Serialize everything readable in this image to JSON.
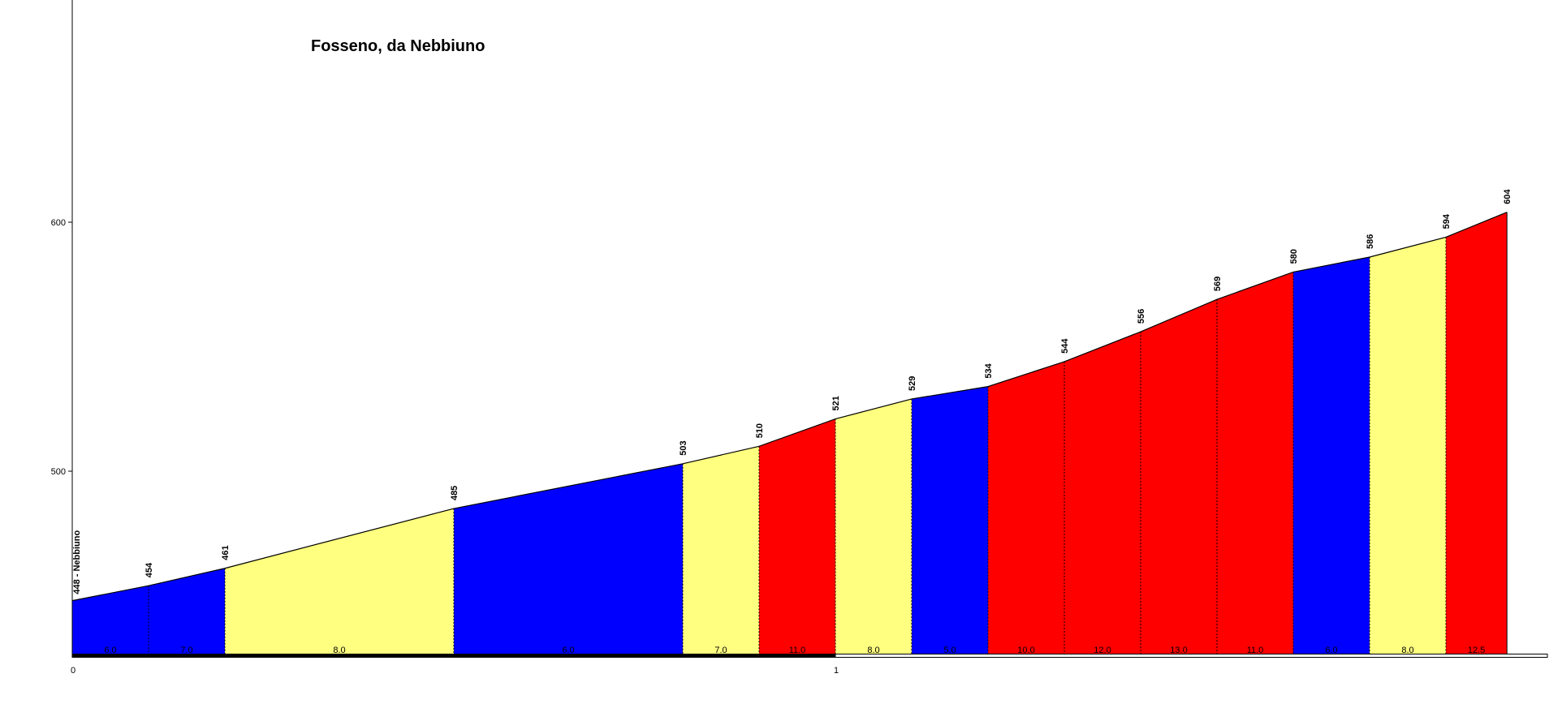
{
  "chart_data": {
    "type": "area",
    "title": "Fosseno, da Nebbiuno",
    "xlabel": "",
    "ylabel": "",
    "xlim": [
      0,
      2.04
    ],
    "ylim": [
      425,
      690
    ],
    "y_ticks": [
      "500",
      "600"
    ],
    "x_ticks": [
      "0",
      "1"
    ],
    "start_label": "448 - Nebbiuno",
    "points": [
      {
        "x": 0.0,
        "y": 448
      },
      {
        "x": 0.1,
        "y": 454
      },
      {
        "x": 0.2,
        "y": 461
      },
      {
        "x": 0.5,
        "y": 485
      },
      {
        "x": 0.8,
        "y": 503
      },
      {
        "x": 0.9,
        "y": 510
      },
      {
        "x": 1.0,
        "y": 521
      },
      {
        "x": 1.1,
        "y": 529
      },
      {
        "x": 1.2,
        "y": 534
      },
      {
        "x": 1.3,
        "y": 544
      },
      {
        "x": 1.4,
        "y": 556
      },
      {
        "x": 1.5,
        "y": 569
      },
      {
        "x": 1.6,
        "y": 580
      },
      {
        "x": 1.7,
        "y": 586
      },
      {
        "x": 1.8,
        "y": 594
      },
      {
        "x": 1.88,
        "y": 604
      }
    ],
    "elevation_labels": [
      "454",
      "461",
      "485",
      "503",
      "510",
      "521",
      "529",
      "534",
      "544",
      "556",
      "569",
      "580",
      "586",
      "594",
      "604"
    ],
    "segments": [
      {
        "grade": "6.0",
        "color": "#0000ff"
      },
      {
        "grade": "7.0",
        "color": "#0000ff"
      },
      {
        "grade": "8.0",
        "color": "#ffff80"
      },
      {
        "grade": "6.0",
        "color": "#0000ff"
      },
      {
        "grade": "7.0",
        "color": "#ffff80"
      },
      {
        "grade": "11.0",
        "color": "#ff0000"
      },
      {
        "grade": "8.0",
        "color": "#ffff80"
      },
      {
        "grade": "5.0",
        "color": "#0000ff"
      },
      {
        "grade": "10.0",
        "color": "#ff0000"
      },
      {
        "grade": "12.0",
        "color": "#ff0000"
      },
      {
        "grade": "13.0",
        "color": "#ff0000"
      },
      {
        "grade": "11.0",
        "color": "#ff0000"
      },
      {
        "grade": "6.0",
        "color": "#0000ff"
      },
      {
        "grade": "8.0",
        "color": "#ffff80"
      },
      {
        "grade": "12.5",
        "color": "#ff0000"
      }
    ],
    "grid": false,
    "legend": "none"
  }
}
